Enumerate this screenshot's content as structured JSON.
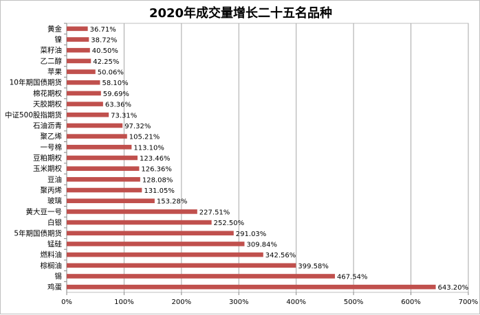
{
  "chart_data": {
    "type": "bar",
    "orientation": "horizontal",
    "title": "2020年成交量增长二十五名品种",
    "xlabel": "",
    "ylabel": "",
    "xlim": [
      0,
      700
    ],
    "x_ticks": [
      "0%",
      "100%",
      "200%",
      "300%",
      "400%",
      "500%",
      "600%",
      "700%"
    ],
    "x_tick_values": [
      0,
      100,
      200,
      300,
      400,
      500,
      600,
      700
    ],
    "grid": true,
    "legend": "none",
    "bar_color": "#C0504D",
    "categories": [
      "黄金",
      "镍",
      "菜籽油",
      "乙二醇",
      "苹果",
      "10年期国债期货",
      "棉花期权",
      "天胶期权",
      "中证500股指期货",
      "石油沥青",
      "聚乙烯",
      "一号棉",
      "豆粕期权",
      "玉米期权",
      "豆油",
      "聚丙烯",
      "玻璃",
      "黄大豆一号",
      "白银",
      "5年期国债期货",
      "锰硅",
      "燃料油",
      "棕榈油",
      "锡",
      "鸡蛋"
    ],
    "values": [
      36.71,
      38.72,
      40.5,
      42.25,
      50.06,
      58.1,
      59.69,
      63.36,
      73.31,
      97.32,
      105.21,
      113.1,
      123.46,
      126.36,
      128.08,
      131.05,
      153.28,
      227.51,
      252.5,
      291.03,
      309.84,
      342.56,
      399.58,
      467.54,
      643.2
    ],
    "value_labels": [
      "36.71%",
      "38.72%",
      "40.50%",
      "42.25%",
      "50.06%",
      "58.10%",
      "59.69%",
      "63.36%",
      "73.31%",
      "97.32%",
      "105.21%",
      "113.10%",
      "123.46%",
      "126.36%",
      "128.08%",
      "131.05%",
      "153.28%",
      "227.51%",
      "252.50%",
      "291.03%",
      "309.84%",
      "342.56%",
      "399.58%",
      "467.54%",
      "643.20%"
    ]
  }
}
